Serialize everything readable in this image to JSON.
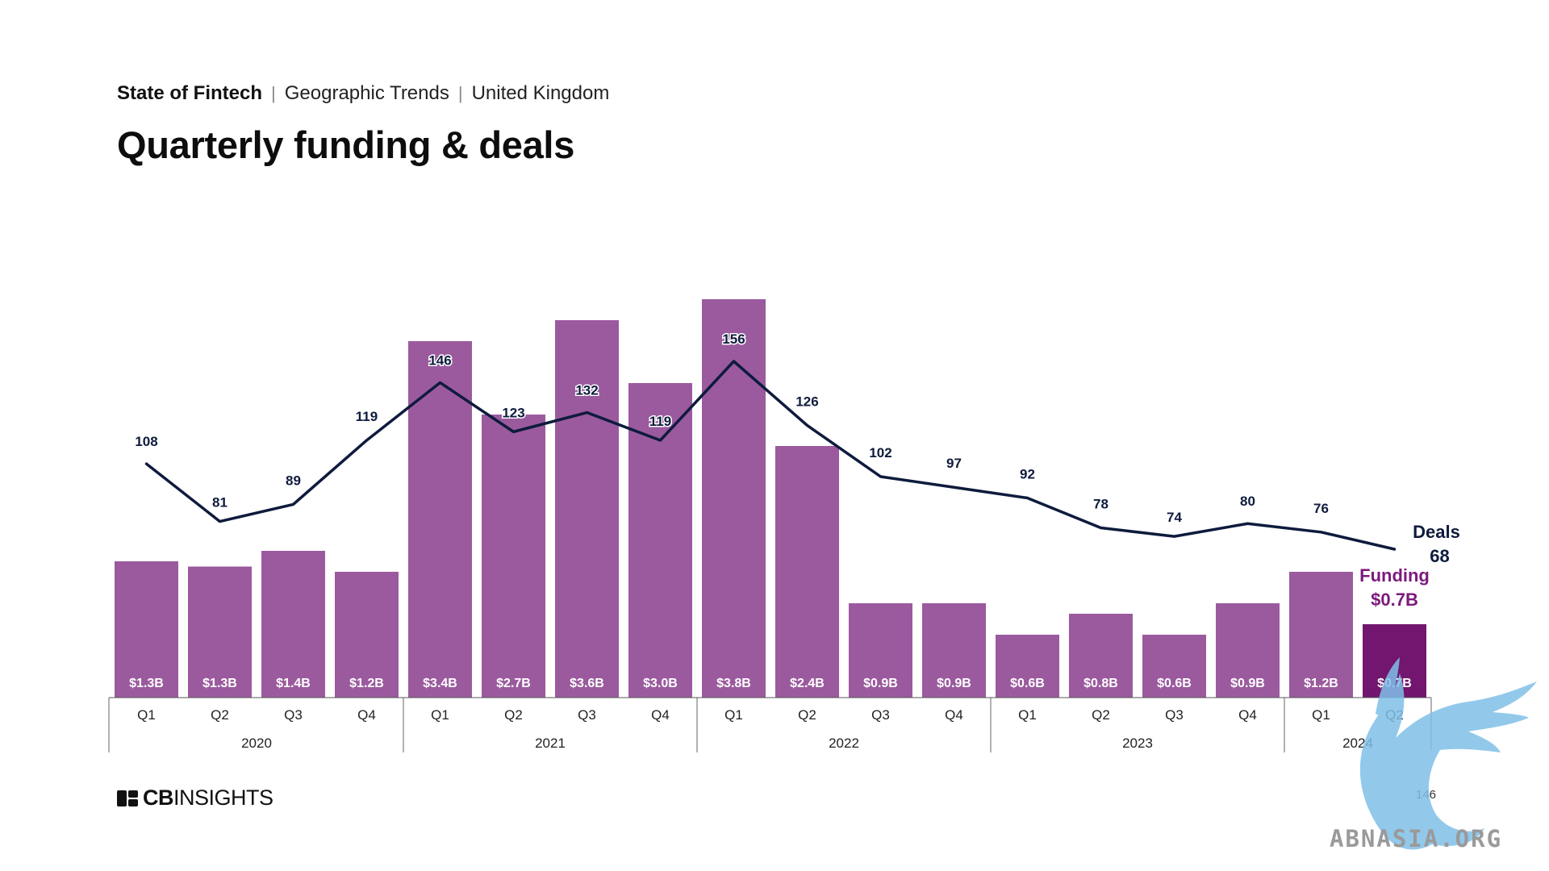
{
  "header": {
    "breadcrumb": [
      "State of Fintech",
      "Geographic Trends",
      "United Kingdom"
    ],
    "title": "Quarterly funding & deals"
  },
  "footer": {
    "logo_text_bold": "CB",
    "logo_text_light": "INSIGHTS",
    "page_number": "146"
  },
  "watermark": {
    "text": "ABNASIA.ORG"
  },
  "colors": {
    "bar": "#9b5a9e",
    "bar_highlight": "#72166f",
    "line": "#0e1b3d",
    "funding_label": "#7b1a7d",
    "deals_label": "#0e1b3d",
    "watermark": "#7fc0e8"
  },
  "chart_data": {
    "type": "bar",
    "categories": [
      "Q1",
      "Q2",
      "Q3",
      "Q4",
      "Q1",
      "Q2",
      "Q3",
      "Q4",
      "Q1",
      "Q2",
      "Q3",
      "Q4",
      "Q1",
      "Q2",
      "Q3",
      "Q4",
      "Q1",
      "Q2"
    ],
    "year_groups": [
      {
        "year": "2020",
        "count": 4
      },
      {
        "year": "2021",
        "count": 4
      },
      {
        "year": "2022",
        "count": 4
      },
      {
        "year": "2023",
        "count": 4
      },
      {
        "year": "2024",
        "count": 2
      }
    ],
    "series": [
      {
        "name": "Funding",
        "type": "bar",
        "values": [
          1.3,
          1.25,
          1.4,
          1.2,
          3.4,
          2.7,
          3.6,
          3.0,
          3.8,
          2.4,
          0.9,
          0.9,
          0.6,
          0.8,
          0.6,
          0.9,
          1.2,
          0.7
        ],
        "labels": [
          "$1.3B",
          "$1.3B",
          "$1.4B",
          "$1.2B",
          "$3.4B",
          "$2.7B",
          "$3.6B",
          "$3.0B",
          "$3.8B",
          "$2.4B",
          "$0.9B",
          "$0.9B",
          "$0.6B",
          "$0.8B",
          "$0.6B",
          "$0.9B",
          "$1.2B",
          "$0.7B"
        ]
      },
      {
        "name": "Deals",
        "type": "line",
        "values": [
          108,
          81,
          89,
          119,
          146,
          123,
          132,
          119,
          156,
          126,
          102,
          97,
          92,
          78,
          74,
          80,
          76,
          68
        ]
      }
    ],
    "end_labels": {
      "deals_name": "Deals",
      "deals_value": "68",
      "funding_name": "Funding",
      "funding_value": "$0.7B"
    },
    "grid": false,
    "legend": "none"
  }
}
